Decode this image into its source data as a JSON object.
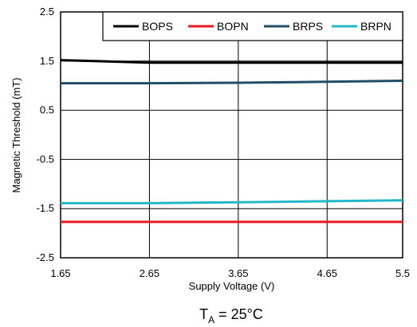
{
  "chart_data": {
    "type": "line",
    "title": "",
    "xlabel": "Supply Voltage (V)",
    "ylabel": "Magnetic Threshold (mT)",
    "xlim": [
      1.65,
      5.5
    ],
    "ylim": [
      -2.5,
      2.5
    ],
    "x_ticks": [
      "1.65",
      "2.65",
      "3.65",
      "4.65",
      "5.5"
    ],
    "y_ticks": [
      "2.5",
      "1.5",
      "0.5",
      "-0.5",
      "-1.5",
      "-2.5"
    ],
    "x_tick_values": [
      1.65,
      2.65,
      3.65,
      4.65,
      5.5
    ],
    "y_tick_values": [
      2.5,
      1.5,
      0.5,
      -0.5,
      -1.5,
      -2.5
    ],
    "grid": true,
    "legend_position": "top-right",
    "series": [
      {
        "name": "BOPS",
        "color": "#000000",
        "x": [
          1.65,
          2.65,
          3.65,
          4.65,
          5.5
        ],
        "y": [
          1.52,
          1.47,
          1.47,
          1.47,
          1.47
        ]
      },
      {
        "name": "BOPN",
        "color": "#e8191f",
        "x": [
          1.65,
          2.65,
          3.65,
          4.65,
          5.5
        ],
        "y": [
          -1.77,
          -1.77,
          -1.77,
          -1.77,
          -1.77
        ]
      },
      {
        "name": "BRPS",
        "color": "#1f4e66",
        "x": [
          1.65,
          2.65,
          3.65,
          4.65,
          5.5
        ],
        "y": [
          1.05,
          1.05,
          1.06,
          1.08,
          1.1
        ]
      },
      {
        "name": "BRPN",
        "color": "#22b8c9",
        "x": [
          1.65,
          2.65,
          3.65,
          4.65,
          5.5
        ],
        "y": [
          -1.39,
          -1.39,
          -1.37,
          -1.35,
          -1.33
        ]
      }
    ]
  },
  "caption": {
    "main": "T",
    "sub": "A",
    "rest": " = 25°C"
  }
}
